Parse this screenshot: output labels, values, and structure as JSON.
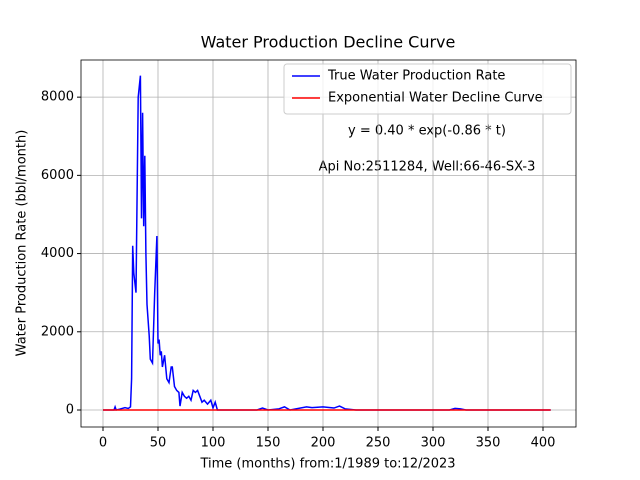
{
  "chart_data": {
    "type": "line",
    "title": "Water Production Decline Curve",
    "xlabel": "Time (months) from:1/1989 to:12/2023",
    "ylabel": "Water Production Rate (bbl/month)",
    "annotations": [
      "y = 0.40 * exp(-0.86 * t)",
      "Api No:2511284, Well:66-46-SX-3"
    ],
    "xlim": [
      -20,
      430
    ],
    "ylim": [
      -435,
      8950
    ],
    "xticks": [
      0,
      50,
      100,
      150,
      200,
      250,
      300,
      350,
      400
    ],
    "yticks": [
      0,
      2000,
      4000,
      6000,
      8000
    ],
    "grid": true,
    "legend": "upper right",
    "series": [
      {
        "name": "True Water Production Rate",
        "color": "#0000ff",
        "x": [
          0,
          10,
          11,
          12,
          15,
          20,
          23,
          25,
          26,
          27,
          28,
          30,
          32,
          34,
          35,
          36,
          37,
          38,
          39,
          40,
          42,
          43,
          45,
          47,
          49,
          50,
          51,
          52,
          53,
          54,
          56,
          58,
          60,
          62,
          63,
          65,
          67,
          69,
          70,
          72,
          74,
          76,
          78,
          80,
          82,
          84,
          86,
          88,
          90,
          92,
          95,
          98,
          100,
          102,
          104,
          106,
          108,
          110,
          112,
          140,
          145,
          150,
          160,
          165,
          170,
          185,
          190,
          200,
          210,
          215,
          220,
          230,
          315,
          320,
          325,
          330,
          407
        ],
        "values": [
          0,
          0,
          80,
          0,
          20,
          60,
          40,
          80,
          800,
          4200,
          3500,
          3000,
          8000,
          8550,
          4900,
          7600,
          4700,
          6500,
          4000,
          2700,
          1900,
          1300,
          1200,
          3000,
          4450,
          1700,
          1800,
          1400,
          1500,
          1100,
          1400,
          800,
          700,
          1100,
          1100,
          600,
          500,
          450,
          100,
          450,
          350,
          300,
          350,
          250,
          500,
          450,
          500,
          350,
          200,
          250,
          150,
          250,
          50,
          200,
          0,
          0,
          0,
          0,
          0,
          0,
          50,
          0,
          30,
          80,
          0,
          80,
          60,
          80,
          50,
          100,
          30,
          0,
          0,
          40,
          30,
          0,
          0
        ]
      },
      {
        "name": "Exponential Water Decline Curve",
        "color": "#ff0000",
        "x": [
          0,
          1,
          2,
          407
        ],
        "values": [
          0.4,
          0.17,
          0.07,
          0
        ]
      }
    ]
  }
}
